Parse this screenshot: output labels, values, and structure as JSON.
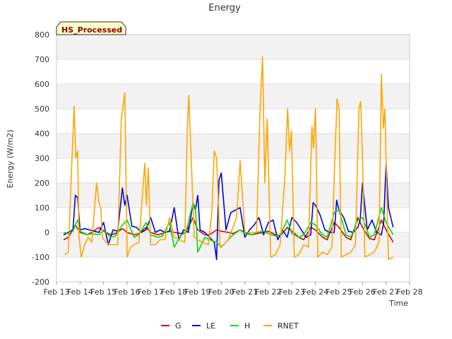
{
  "chart_data": {
    "type": "line",
    "title": "Energy",
    "xlabel": "Time",
    "ylabel": "Energy (W/m2)",
    "badge": "HS_Processed",
    "ylim": [
      -200,
      800
    ],
    "xlim": [
      13,
      28
    ],
    "yticks": [
      -200,
      -100,
      0,
      100,
      200,
      300,
      400,
      500,
      600,
      700,
      800
    ],
    "xticks": [
      {
        "v": 13,
        "label": "Feb 13"
      },
      {
        "v": 14,
        "label": "Feb 14"
      },
      {
        "v": 15,
        "label": "Feb 15"
      },
      {
        "v": 16,
        "label": "Feb 16"
      },
      {
        "v": 17,
        "label": "Feb 17"
      },
      {
        "v": 18,
        "label": "Feb 18"
      },
      {
        "v": 19,
        "label": "Feb 19"
      },
      {
        "v": 20,
        "label": "Feb 20"
      },
      {
        "v": 21,
        "label": "Feb 21"
      },
      {
        "v": 22,
        "label": "Feb 22"
      },
      {
        "v": 23,
        "label": "Feb 23"
      },
      {
        "v": 24,
        "label": "Feb 24"
      },
      {
        "v": 25,
        "label": "Feb 25"
      },
      {
        "v": 26,
        "label": "Feb 26"
      },
      {
        "v": 27,
        "label": "Feb 27"
      },
      {
        "v": 28,
        "label": "Feb 28"
      }
    ],
    "grid": true,
    "legend_position": "bottom",
    "series": [
      {
        "name": "G",
        "color": "#dd0000",
        "x": [
          13.3,
          13.5,
          13.7,
          13.8,
          14.0,
          14.3,
          14.5,
          14.8,
          15.0,
          15.3,
          15.5,
          15.8,
          16.0,
          16.3,
          16.5,
          16.8,
          17.0,
          17.3,
          17.5,
          17.8,
          18.0,
          18.3,
          18.5,
          18.8,
          19.0,
          19.3,
          19.5,
          19.8,
          20.0,
          20.3,
          20.5,
          20.8,
          21.0,
          21.3,
          21.5,
          21.8,
          22.0,
          22.3,
          22.5,
          22.8,
          23.0,
          23.3,
          23.5,
          23.8,
          24.0,
          24.3,
          24.5,
          24.8,
          25.0,
          25.3,
          25.5,
          25.8,
          26.0,
          26.3,
          26.5,
          26.8,
          27.0,
          27.3
        ],
        "y": [
          -30,
          -20,
          10,
          30,
          0,
          -10,
          0,
          20,
          5,
          -10,
          -5,
          15,
          0,
          -10,
          -5,
          20,
          0,
          -10,
          -5,
          5,
          0,
          -5,
          0,
          60,
          10,
          -10,
          -10,
          10,
          5,
          0,
          -5,
          10,
          0,
          -10,
          -5,
          0,
          5,
          -10,
          -15,
          20,
          5,
          -20,
          -30,
          20,
          10,
          -20,
          -30,
          40,
          20,
          -20,
          -30,
          60,
          20,
          -25,
          -30,
          50,
          10,
          -40
        ]
      },
      {
        "name": "LE",
        "color": "#0000dd",
        "x": [
          13.3,
          13.5,
          13.7,
          13.8,
          13.9,
          14.0,
          14.2,
          14.4,
          14.6,
          14.8,
          15.0,
          15.2,
          15.4,
          15.6,
          15.8,
          15.9,
          16.0,
          16.2,
          16.4,
          16.6,
          16.8,
          17.0,
          17.2,
          17.4,
          17.6,
          17.8,
          18.0,
          18.2,
          18.4,
          18.6,
          18.8,
          18.9,
          19.0,
          19.1,
          19.3,
          19.5,
          19.7,
          19.8,
          19.9,
          20.0,
          20.2,
          20.4,
          20.6,
          20.8,
          21.0,
          21.2,
          21.4,
          21.6,
          21.8,
          22.0,
          22.2,
          22.4,
          22.6,
          22.8,
          23.0,
          23.2,
          23.4,
          23.6,
          23.8,
          23.9,
          24.0,
          24.2,
          24.4,
          24.6,
          24.8,
          24.9,
          25.0,
          25.2,
          25.4,
          25.6,
          25.8,
          25.9,
          26.0,
          26.2,
          26.4,
          26.6,
          26.8,
          26.9,
          27.0,
          27.1,
          27.3
        ],
        "y": [
          -10,
          0,
          10,
          150,
          140,
          10,
          15,
          10,
          5,
          0,
          40,
          -50,
          10,
          5,
          180,
          110,
          150,
          25,
          20,
          0,
          10,
          60,
          0,
          10,
          0,
          5,
          100,
          -30,
          10,
          0,
          120,
          90,
          150,
          10,
          0,
          -20,
          -40,
          -110,
          210,
          240,
          10,
          80,
          90,
          100,
          -20,
          10,
          30,
          60,
          -10,
          40,
          50,
          -30,
          10,
          -20,
          60,
          40,
          10,
          -20,
          -10,
          120,
          110,
          70,
          10,
          0,
          0,
          130,
          90,
          60,
          5,
          0,
          20,
          50,
          200,
          10,
          50,
          0,
          -10,
          40,
          280,
          100,
          20
        ]
      },
      {
        "name": "H",
        "color": "#00dd00",
        "x": [
          13.3,
          13.5,
          13.7,
          13.8,
          13.9,
          14.0,
          14.3,
          14.5,
          14.8,
          15.0,
          15.3,
          15.5,
          15.8,
          16.0,
          16.3,
          16.5,
          16.8,
          17.0,
          17.3,
          17.5,
          17.8,
          18.0,
          18.3,
          18.5,
          18.8,
          18.9,
          19.0,
          19.3,
          19.5,
          19.8,
          20.0,
          20.3,
          20.5,
          20.8,
          21.0,
          21.3,
          21.5,
          21.8,
          22.0,
          22.3,
          22.5,
          22.8,
          23.0,
          23.3,
          23.5,
          23.8,
          24.0,
          24.3,
          24.5,
          24.8,
          25.0,
          25.3,
          25.5,
          25.8,
          26.0,
          26.3,
          26.5,
          26.8,
          27.0,
          27.3
        ],
        "y": [
          0,
          -5,
          5,
          30,
          50,
          5,
          -10,
          -5,
          -10,
          10,
          -20,
          -15,
          30,
          50,
          -20,
          -10,
          40,
          -10,
          -20,
          -15,
          40,
          -60,
          -10,
          0,
          120,
          100,
          -80,
          -20,
          -30,
          -40,
          -60,
          -30,
          -10,
          10,
          -5,
          -10,
          0,
          5,
          -5,
          -15,
          -10,
          50,
          -5,
          -20,
          -10,
          40,
          30,
          -10,
          -20,
          80,
          90,
          -10,
          -20,
          50,
          60,
          -20,
          -10,
          100,
          40,
          -10
        ]
      },
      {
        "name": "RNET",
        "color": "#ffa500",
        "x": [
          13.35,
          13.5,
          13.65,
          13.75,
          13.82,
          13.9,
          13.95,
          14.05,
          14.2,
          14.35,
          14.5,
          14.7,
          14.8,
          14.88,
          14.95,
          15.1,
          15.3,
          15.6,
          15.75,
          15.82,
          15.9,
          16.0,
          16.15,
          16.3,
          16.5,
          16.75,
          16.82,
          16.9,
          17.0,
          17.2,
          17.4,
          17.6,
          17.8,
          18.0,
          18.2,
          18.45,
          18.55,
          18.62,
          18.7,
          18.85,
          19.0,
          19.2,
          19.45,
          19.6,
          19.7,
          19.8,
          19.95,
          20.1,
          20.3,
          20.65,
          20.8,
          21.0,
          21.2,
          21.5,
          21.65,
          21.75,
          21.85,
          21.95,
          22.1,
          22.3,
          22.5,
          22.7,
          22.82,
          22.9,
          22.98,
          23.1,
          23.3,
          23.5,
          23.7,
          23.85,
          23.92,
          24.0,
          24.1,
          24.3,
          24.5,
          24.7,
          24.85,
          24.92,
          25.0,
          25.1,
          25.3,
          25.5,
          25.7,
          25.85,
          25.92,
          26.0,
          26.1,
          26.3,
          26.5,
          26.7,
          26.8,
          26.88,
          26.95,
          27.1,
          27.3
        ],
        "y": [
          -90,
          -80,
          280,
          510,
          300,
          330,
          -10,
          -100,
          -50,
          -20,
          -40,
          200,
          120,
          100,
          -20,
          -40,
          -50,
          -50,
          450,
          510,
          565,
          -100,
          -60,
          -50,
          -40,
          280,
          110,
          260,
          -50,
          -50,
          -30,
          -30,
          60,
          -20,
          -30,
          -40,
          400,
          555,
          350,
          -20,
          -30,
          -40,
          -50,
          80,
          330,
          300,
          -60,
          -50,
          -30,
          60,
          290,
          0,
          0,
          0,
          500,
          710,
          200,
          460,
          -100,
          -90,
          -50,
          220,
          500,
          330,
          410,
          -100,
          -90,
          -50,
          -60,
          430,
          340,
          500,
          -100,
          -80,
          -90,
          -60,
          370,
          540,
          500,
          -100,
          -90,
          -80,
          -50,
          500,
          530,
          300,
          -100,
          -90,
          -80,
          -40,
          640,
          420,
          500,
          -110,
          -100
        ]
      }
    ]
  }
}
